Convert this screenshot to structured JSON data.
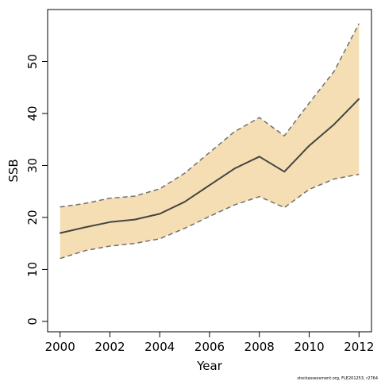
{
  "chart_data": {
    "type": "line",
    "xlabel": "Year",
    "ylabel": "SSB",
    "xlim": [
      1999.5,
      2012.5
    ],
    "ylim": [
      -2,
      60
    ],
    "xticks": [
      2000,
      2002,
      2004,
      2006,
      2008,
      2010,
      2012
    ],
    "yticks": [
      0,
      10,
      20,
      30,
      40,
      50
    ],
    "grid": false,
    "colors": {
      "band": "#f5deb3",
      "line": "#444444",
      "bounds": "#707070"
    },
    "x": [
      2000,
      2001,
      2002,
      2003,
      2004,
      2005,
      2006,
      2007,
      2008,
      2009,
      2010,
      2011,
      2012
    ],
    "series": [
      {
        "values": [
          17.0,
          18.1,
          19.1,
          19.6,
          20.7,
          23.0,
          26.2,
          29.4,
          31.7,
          28.8,
          33.8,
          37.9,
          42.8
        ]
      }
    ],
    "band": {
      "upper": [
        22.0,
        22.7,
        23.7,
        24.1,
        25.5,
        28.5,
        32.5,
        36.5,
        39.2,
        35.7,
        42.0,
        48.1,
        57.3
      ],
      "lower": [
        12.1,
        13.6,
        14.5,
        15.0,
        15.9,
        17.9,
        20.2,
        22.4,
        24.0,
        21.9,
        25.4,
        27.4,
        28.3
      ]
    },
    "credit": "stockassessment.org, FLE201253, r2764"
  }
}
